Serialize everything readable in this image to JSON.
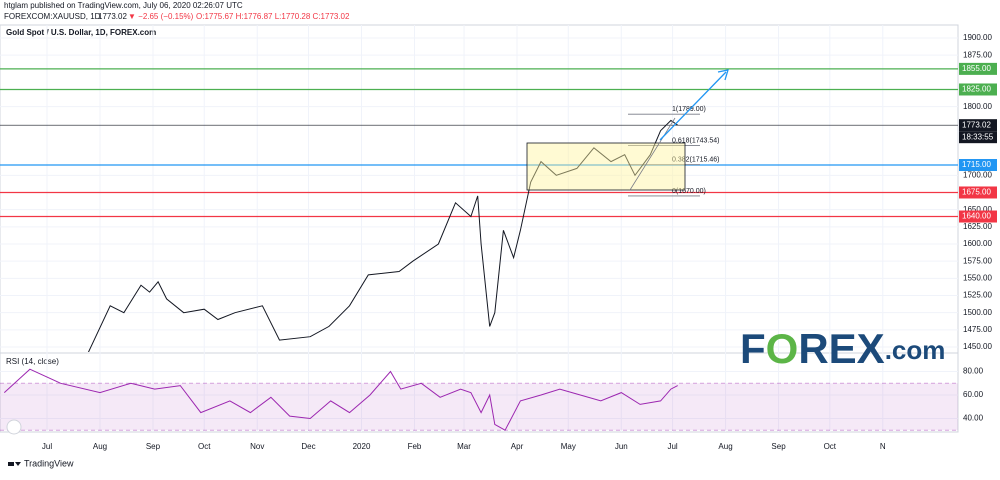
{
  "header": {
    "publisher": "htglam published on TradingView.com, July 06, 2020 02:26:07 UTC",
    "symbol": "FOREXCOM:XAUUSD, 1D",
    "last": "1773.02",
    "change": "▼ −2.65 (−0.15%)",
    "ohlc": "O:1775.67 H:1776.87 L:1770.28 C:1773.02"
  },
  "chart_data": [
    {
      "type": "line",
      "title": "Gold Spot / U.S. Dollar, 1D, FOREX.com",
      "color": "#131722",
      "x": [
        20,
        37,
        45,
        55,
        60,
        65,
        70,
        80,
        92,
        100,
        110,
        126,
        136,
        154,
        165,
        177,
        188,
        206,
        214,
        229,
        239,
        248,
        252,
        254,
        259,
        262,
        267,
        273,
        277,
        283,
        289,
        298,
        310,
        320,
        330,
        338,
        344,
        353,
        359,
        365,
        369
      ],
      "values": [
        1420,
        1510,
        1500,
        1540,
        1530,
        1545,
        1520,
        1500,
        1505,
        1490,
        1500,
        1510,
        1460,
        1465,
        1480,
        1510,
        1555,
        1560,
        1575,
        1600,
        1660,
        1640,
        1670,
        1600,
        1480,
        1500,
        1620,
        1580,
        1620,
        1690,
        1720,
        1700,
        1710,
        1740,
        1720,
        1730,
        1700,
        1730,
        1765,
        1780,
        1773
      ],
      "xlim": [
        -27.5,
        533
      ],
      "ylim": [
        1442.7,
        1918.9
      ],
      "xticks": [
        {
          "value": 0,
          "label": "Jul"
        },
        {
          "value": 31,
          "label": "Aug"
        },
        {
          "value": 62,
          "label": "Sep"
        },
        {
          "value": 92,
          "label": "Oct"
        },
        {
          "value": 123,
          "label": "Nov"
        },
        {
          "value": 153,
          "label": "Dec"
        },
        {
          "value": 184,
          "label": "2020"
        },
        {
          "value": 215,
          "label": "Feb"
        },
        {
          "value": 244,
          "label": "Mar"
        },
        {
          "value": 275,
          "label": "Apr"
        },
        {
          "value": 305,
          "label": "May"
        },
        {
          "value": 336,
          "label": "Jun"
        },
        {
          "value": 366,
          "label": "Jul"
        },
        {
          "value": 397,
          "label": "Aug"
        },
        {
          "value": 428,
          "label": "Sep"
        },
        {
          "value": 458,
          "label": "Oct"
        },
        {
          "value": 489,
          "label": "N"
        }
      ],
      "yticks": [
        {
          "value": 1450,
          "label": "1450.00"
        },
        {
          "value": 1475,
          "label": "1475.00"
        },
        {
          "value": 1500,
          "label": "1500.00"
        },
        {
          "value": 1525,
          "label": "1525.00"
        },
        {
          "value": 1550,
          "label": "1550.00"
        },
        {
          "value": 1575,
          "label": "1575.00"
        },
        {
          "value": 1600,
          "label": "1600.00"
        },
        {
          "value": 1625,
          "label": "1625.00"
        },
        {
          "value": 1650,
          "label": "1650.00"
        },
        {
          "value": 1700,
          "label": "1700.00"
        },
        {
          "value": 1800,
          "label": "1800.00"
        },
        {
          "value": 1875,
          "label": "1875.00"
        },
        {
          "value": 1900,
          "label": "1900.00"
        }
      ],
      "grid": true,
      "levels": [
        {
          "value": 1855,
          "label": "1855.00",
          "color": "#4caf50"
        },
        {
          "value": 1825,
          "label": "1825.00",
          "color": "#4caf50"
        },
        {
          "value": 1773.02,
          "label": "1773.02",
          "color": "#131722"
        },
        {
          "value": 1715,
          "label": "1715.00",
          "color": "#2196f3"
        },
        {
          "value": 1675,
          "label": "1675.00",
          "color": "#f23645"
        },
        {
          "value": 1640,
          "label": "1640.00",
          "color": "#f23645"
        }
      ],
      "countdown": "18:33:55",
      "fib": [
        {
          "value": 1789,
          "label": "1(1789.00)"
        },
        {
          "value": 1743.54,
          "label": "0.618(1743.54)"
        },
        {
          "value": 1715.46,
          "label": "0.382(1715.46)"
        },
        {
          "value": 1670,
          "label": "0(1670.00)"
        }
      ]
    },
    {
      "type": "line",
      "title": "RSI (14, close)",
      "color": "#9c27b0",
      "x": [
        -25,
        -10,
        8,
        31,
        49,
        63,
        78,
        90,
        107,
        119,
        131,
        142,
        154,
        166,
        177,
        189,
        201,
        207,
        219,
        230,
        242,
        248,
        254,
        259,
        262,
        268,
        277,
        289,
        300,
        312,
        324,
        336,
        347,
        359,
        365,
        369
      ],
      "values": [
        62,
        82,
        70,
        62,
        70,
        65,
        68,
        45,
        55,
        45,
        58,
        42,
        40,
        55,
        45,
        60,
        80,
        65,
        70,
        58,
        65,
        62,
        45,
        60,
        35,
        30,
        55,
        60,
        65,
        60,
        55,
        62,
        52,
        55,
        65,
        68
      ],
      "xlim": [
        -27.5,
        533
      ],
      "ylim": [
        28.5,
        94.9
      ],
      "yticks": [
        {
          "value": 40,
          "label": "40.00"
        },
        {
          "value": 60,
          "label": "60.00"
        },
        {
          "value": 80,
          "label": "80.00"
        }
      ],
      "band": [
        30,
        70
      ]
    }
  ],
  "logo": [
    "F",
    "O",
    "REX",
    ".com"
  ],
  "footer": "TradingView"
}
